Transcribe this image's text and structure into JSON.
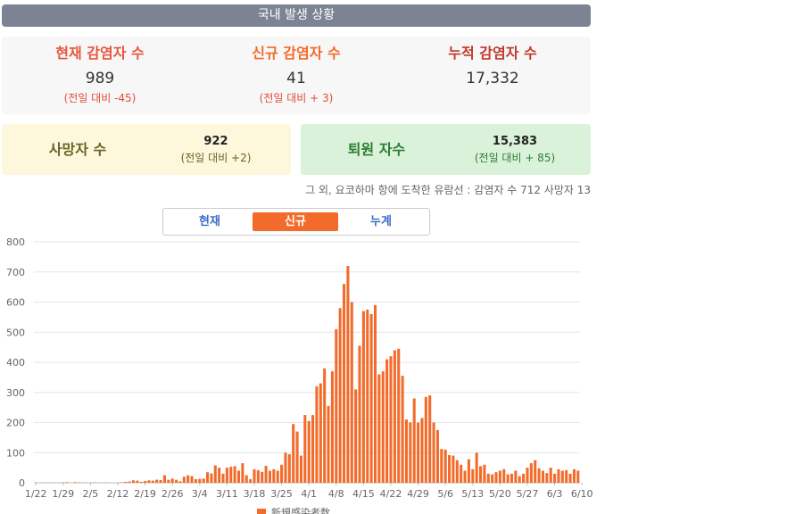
{
  "header": {
    "title": "국내 발생 상황"
  },
  "stats": [
    {
      "label": "현재 감염자 수",
      "value": "989",
      "delta": "(전일 대비 -45)",
      "color": "#e8553e"
    },
    {
      "label": "신규 감염자 수",
      "value": "41",
      "delta": "(전일 대비 + 3)",
      "color": "#f26b2a"
    },
    {
      "label": "누적 감염자 수",
      "value": "17,332",
      "delta": "",
      "color": "#c0392b"
    }
  ],
  "deaths": {
    "label": "사망자 수",
    "value": "922",
    "delta": "(전일 대비 +2)",
    "color": "#6b6226"
  },
  "recovered": {
    "label": "퇴원 자수",
    "value": "15,383",
    "delta": "(전일 대비 + 85)",
    "color": "#2e7d32"
  },
  "note": "그 외, 요코하마 항에 도착한 유람선 : 감염자 수 712 사망자 13",
  "tabs": [
    {
      "label": "현재",
      "active": false
    },
    {
      "label": "신규",
      "active": true
    },
    {
      "label": "누계",
      "active": false
    }
  ],
  "chart_data": {
    "type": "bar",
    "legend": "新規感染者数",
    "bar_color": "#f26b2a",
    "ylim": [
      0,
      800
    ],
    "yticks": [
      0,
      100,
      200,
      300,
      400,
      500,
      600,
      700,
      800
    ],
    "x_tick_labels": [
      "1/22",
      "1/29",
      "2/5",
      "2/12",
      "2/19",
      "2/26",
      "3/4",
      "3/11",
      "3/18",
      "3/25",
      "4/1",
      "4/8",
      "4/15",
      "4/22",
      "4/29",
      "5/6",
      "5/13",
      "5/20",
      "5/27",
      "6/3",
      "6/10"
    ],
    "values": [
      0,
      0,
      0,
      1,
      0,
      0,
      0,
      1,
      2,
      0,
      2,
      1,
      1,
      0,
      0,
      1,
      0,
      0,
      1,
      0,
      0,
      0,
      1,
      3,
      4,
      8,
      7,
      3,
      6,
      8,
      7,
      10,
      9,
      25,
      10,
      14,
      10,
      5,
      20,
      25,
      22,
      12,
      13,
      14,
      35,
      31,
      58,
      50,
      30,
      50,
      53,
      55,
      40,
      65,
      25,
      12,
      45,
      42,
      36,
      56,
      40,
      45,
      40,
      60,
      100,
      95,
      195,
      170,
      90,
      225,
      205,
      225,
      320,
      330,
      380,
      255,
      370,
      510,
      580,
      660,
      720,
      600,
      310,
      455,
      570,
      575,
      560,
      590,
      360,
      370,
      410,
      420,
      440,
      445,
      355,
      210,
      200,
      280,
      200,
      215,
      285,
      290,
      200,
      175,
      112,
      110,
      92,
      90,
      75,
      60,
      40,
      78,
      45,
      100,
      55,
      60,
      30,
      28,
      35,
      40,
      45,
      28,
      30,
      40,
      22,
      30,
      50,
      65,
      75,
      48,
      40,
      32,
      50,
      30,
      45,
      40,
      42,
      30,
      45,
      40
    ]
  }
}
